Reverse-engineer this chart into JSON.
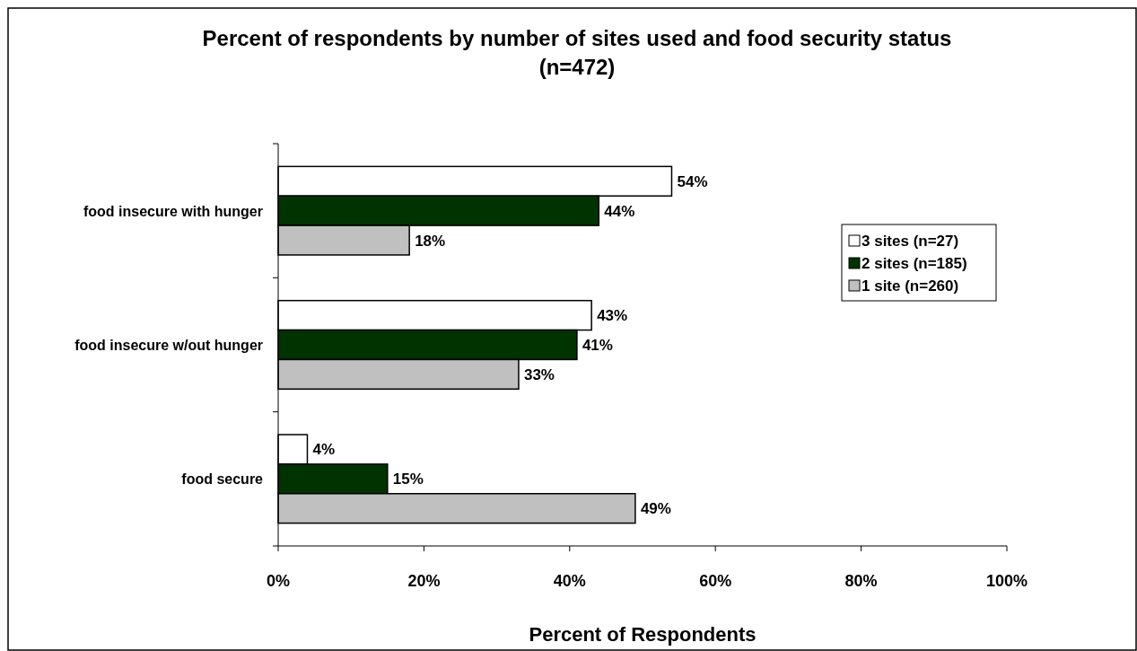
{
  "chart_data": {
    "type": "bar",
    "orientation": "horizontal",
    "title": "Percent of respondents by number of sites used and food security status (n=472)",
    "xlabel": "Percent of Respondents",
    "categories": [
      "food insecure with hunger",
      "food insecure w/out hunger",
      "food secure"
    ],
    "series": [
      {
        "name": "3 sites (n=27)",
        "color": "#ffffff",
        "values": [
          54,
          43,
          4
        ],
        "value_labels": [
          "54%",
          "43%",
          "4%"
        ]
      },
      {
        "name": "2 sites (n=185)",
        "color": "#003300",
        "values": [
          44,
          41,
          15
        ],
        "value_labels": [
          "44%",
          "41%",
          "15%"
        ]
      },
      {
        "name": "1 site (n=260)",
        "color": "#c0c0c0",
        "values": [
          18,
          33,
          49
        ],
        "value_labels": [
          "18%",
          "33%",
          "49%"
        ]
      }
    ],
    "xlim": [
      0,
      100
    ],
    "xticks": [
      {
        "value": 0,
        "label": "0%"
      },
      {
        "value": 20,
        "label": "20%"
      },
      {
        "value": 40,
        "label": "40%"
      },
      {
        "value": 60,
        "label": "60%"
      },
      {
        "value": 80,
        "label": "80%"
      },
      {
        "value": 100,
        "label": "100%"
      }
    ],
    "legend": "right",
    "grid": false
  }
}
